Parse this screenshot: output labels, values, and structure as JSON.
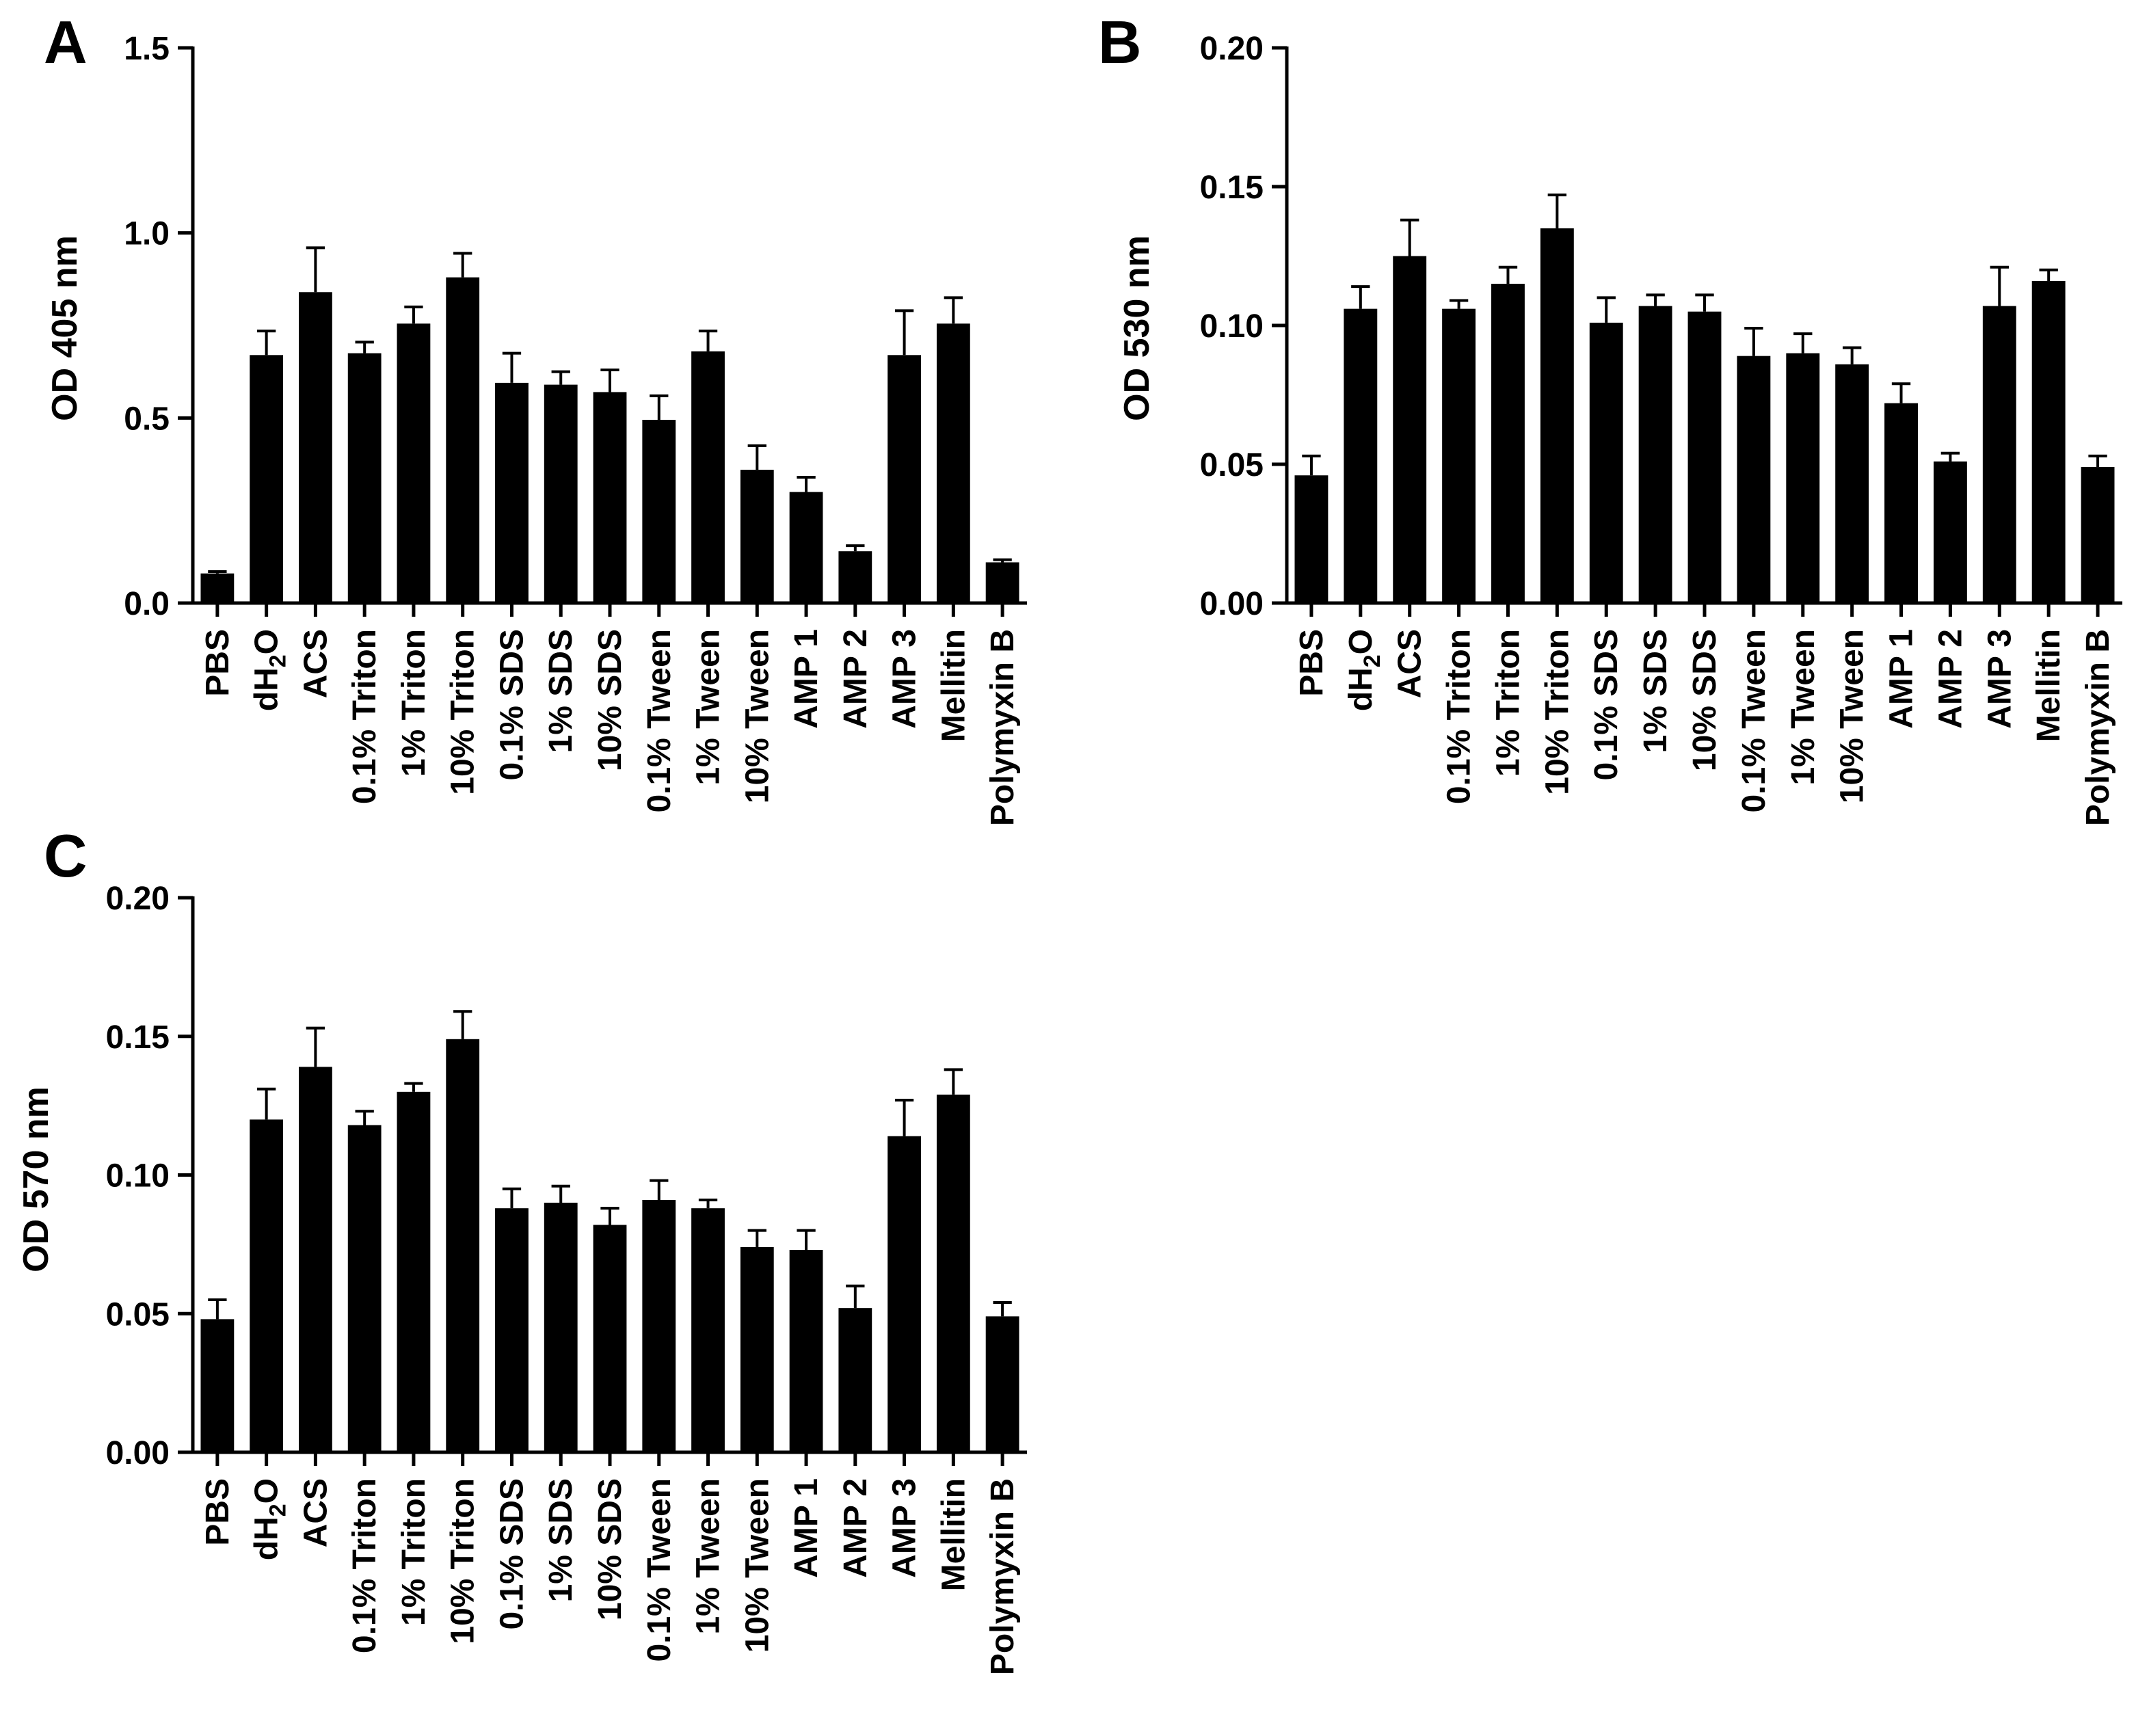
{
  "figure": {
    "bar_color": "#000000",
    "axis_color": "#000000",
    "background": "#ffffff"
  },
  "chart_data": [
    {
      "panel": "A",
      "type": "bar",
      "title": "",
      "xlabel": "",
      "ylabel": "OD 405 nm",
      "ylim": [
        0,
        1.5
      ],
      "yticks": [
        "0.0",
        "0.5",
        "1.0",
        "1.5"
      ],
      "categories": [
        "PBS",
        "dH2O",
        "ACS",
        "0.1% Triton",
        "1% Triton",
        "10% Triton",
        "0.1% SDS",
        "1% SDS",
        "10% SDS",
        "0.1% Tween",
        "1% Tween",
        "10% Tween",
        "AMP 1",
        "AMP 2",
        "AMP 3",
        "Mellitin",
        "Polymyxin B"
      ],
      "values": [
        0.08,
        0.67,
        0.84,
        0.675,
        0.755,
        0.88,
        0.595,
        0.59,
        0.57,
        0.495,
        0.68,
        0.36,
        0.3,
        0.14,
        0.67,
        0.755,
        0.11
      ],
      "errors": [
        0.005,
        0.065,
        0.12,
        0.03,
        0.045,
        0.065,
        0.08,
        0.035,
        0.06,
        0.065,
        0.055,
        0.065,
        0.04,
        0.015,
        0.12,
        0.07,
        0.007
      ]
    },
    {
      "panel": "B",
      "type": "bar",
      "title": "",
      "xlabel": "",
      "ylabel": "OD 530 nm",
      "ylim": [
        0,
        0.2
      ],
      "yticks": [
        "0.00",
        "0.05",
        "0.10",
        "0.15",
        "0.20"
      ],
      "categories": [
        "PBS",
        "dH2O",
        "ACS",
        "0.1% Triton",
        "1% Triton",
        "10% Triton",
        "0.1% SDS",
        "1% SDS",
        "10% SDS",
        "0.1% Tween",
        "1% Tween",
        "10% Tween",
        "AMP 1",
        "AMP 2",
        "AMP 3",
        "Mellitin",
        "Polymyxin B"
      ],
      "values": [
        0.046,
        0.106,
        0.125,
        0.106,
        0.115,
        0.135,
        0.101,
        0.107,
        0.105,
        0.089,
        0.09,
        0.086,
        0.072,
        0.051,
        0.107,
        0.116,
        0.049
      ],
      "errors": [
        0.007,
        0.008,
        0.013,
        0.003,
        0.006,
        0.012,
        0.009,
        0.004,
        0.006,
        0.01,
        0.007,
        0.006,
        0.007,
        0.003,
        0.014,
        0.004,
        0.004
      ]
    },
    {
      "panel": "C",
      "type": "bar",
      "title": "",
      "xlabel": "",
      "ylabel": "OD 570 nm",
      "ylim": [
        0,
        0.2
      ],
      "yticks": [
        "0.00",
        "0.05",
        "0.10",
        "0.15",
        "0.20"
      ],
      "categories": [
        "PBS",
        "dH2O",
        "ACS",
        "0.1% Triton",
        "1% Triton",
        "10% Triton",
        "0.1% SDS",
        "1% SDS",
        "10% SDS",
        "0.1% Tween",
        "1% Tween",
        "10% Tween",
        "AMP 1",
        "AMP 2",
        "AMP 3",
        "Mellitin",
        "Polymyxin B"
      ],
      "values": [
        0.048,
        0.12,
        0.139,
        0.118,
        0.13,
        0.149,
        0.088,
        0.09,
        0.082,
        0.091,
        0.088,
        0.074,
        0.073,
        0.052,
        0.114,
        0.129,
        0.049
      ],
      "errors": [
        0.007,
        0.011,
        0.014,
        0.005,
        0.003,
        0.01,
        0.007,
        0.006,
        0.006,
        0.007,
        0.003,
        0.006,
        0.007,
        0.008,
        0.013,
        0.009,
        0.005
      ]
    }
  ]
}
